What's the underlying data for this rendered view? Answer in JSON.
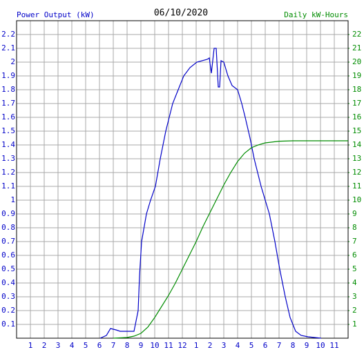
{
  "chart_data": {
    "type": "line",
    "title": "06/10/2020",
    "ylabel": "Power Output (kW)",
    "y2label": "Daily kW-Hours",
    "xlim": [
      0,
      24
    ],
    "xticks": [
      1,
      2,
      3,
      4,
      5,
      6,
      7,
      8,
      9,
      10,
      11,
      12,
      {
        "value": 13,
        "label": "1"
      },
      {
        "value": 14,
        "label": "2"
      },
      {
        "value": 15,
        "label": "3"
      },
      {
        "value": 16,
        "label": "4"
      },
      {
        "value": 17,
        "label": "5"
      },
      {
        "value": 18,
        "label": "6"
      },
      {
        "value": 19,
        "label": "7"
      },
      {
        "value": 20,
        "label": "8"
      },
      {
        "value": 21,
        "label": "9"
      },
      {
        "value": 22,
        "label": "10"
      },
      {
        "value": 23,
        "label": "11"
      }
    ],
    "ylim": [
      0,
      2.3
    ],
    "yticks": [
      0.1,
      0.2,
      0.3,
      0.4,
      0.5,
      0.6,
      0.7,
      0.8,
      0.9,
      1.0,
      1.1,
      1.2,
      1.3,
      1.4,
      1.5,
      1.6,
      1.7,
      1.8,
      1.9,
      2.0,
      2.1,
      2.2
    ],
    "y2lim": [
      0,
      23
    ],
    "y2ticks": [
      1,
      2,
      3,
      4,
      5,
      6,
      7,
      8,
      9,
      10,
      11,
      12,
      13,
      14,
      15,
      16,
      17,
      18,
      19,
      20,
      21,
      22
    ],
    "grid": true,
    "series": [
      {
        "name": "Power Output (kW)",
        "color": "#0000c8",
        "x": [
          6.05,
          6.5,
          6.8,
          7.2,
          7.5,
          8.5,
          8.8,
          8.9,
          9.05,
          9.4,
          9.7,
          10.05,
          10.4,
          10.8,
          11.3,
          11.7,
          12.1,
          12.55,
          13.05,
          13.8,
          13.95,
          14.1,
          14.3,
          14.45,
          14.6,
          14.7,
          14.8,
          15.0,
          15.3,
          15.6,
          16.0,
          16.3,
          16.55,
          16.9,
          17.2,
          17.7,
          18.3,
          18.7,
          19.05,
          19.45,
          19.8,
          20.2,
          20.6,
          21.1,
          22.05
        ],
        "values": [
          0,
          0.02,
          0.07,
          0.06,
          0.05,
          0.05,
          0.2,
          0.45,
          0.7,
          0.9,
          1.0,
          1.1,
          1.3,
          1.5,
          1.7,
          1.8,
          1.9,
          1.96,
          2.0,
          2.02,
          2.03,
          1.92,
          2.1,
          2.1,
          1.82,
          1.82,
          2.01,
          2.0,
          1.9,
          1.83,
          1.8,
          1.7,
          1.6,
          1.45,
          1.3,
          1.1,
          0.9,
          0.7,
          0.5,
          0.3,
          0.15,
          0.05,
          0.02,
          0.01,
          0
        ]
      },
      {
        "name": "Daily kW-Hours",
        "color": "#008c00",
        "axis": "y2",
        "x": [
          7,
          8,
          8.5,
          9,
          9.5,
          10,
          10.5,
          11,
          11.5,
          12,
          12.5,
          13,
          13.5,
          14,
          14.5,
          15,
          15.5,
          16,
          16.5,
          17,
          17.5,
          18,
          19,
          20,
          24
        ],
        "values": [
          0,
          0.05,
          0.15,
          0.35,
          0.8,
          1.5,
          2.3,
          3.1,
          4.0,
          5.0,
          6.0,
          7.0,
          8.1,
          9.1,
          10.1,
          11.1,
          12.0,
          12.8,
          13.4,
          13.8,
          14.0,
          14.15,
          14.27,
          14.3,
          14.3
        ]
      }
    ]
  }
}
